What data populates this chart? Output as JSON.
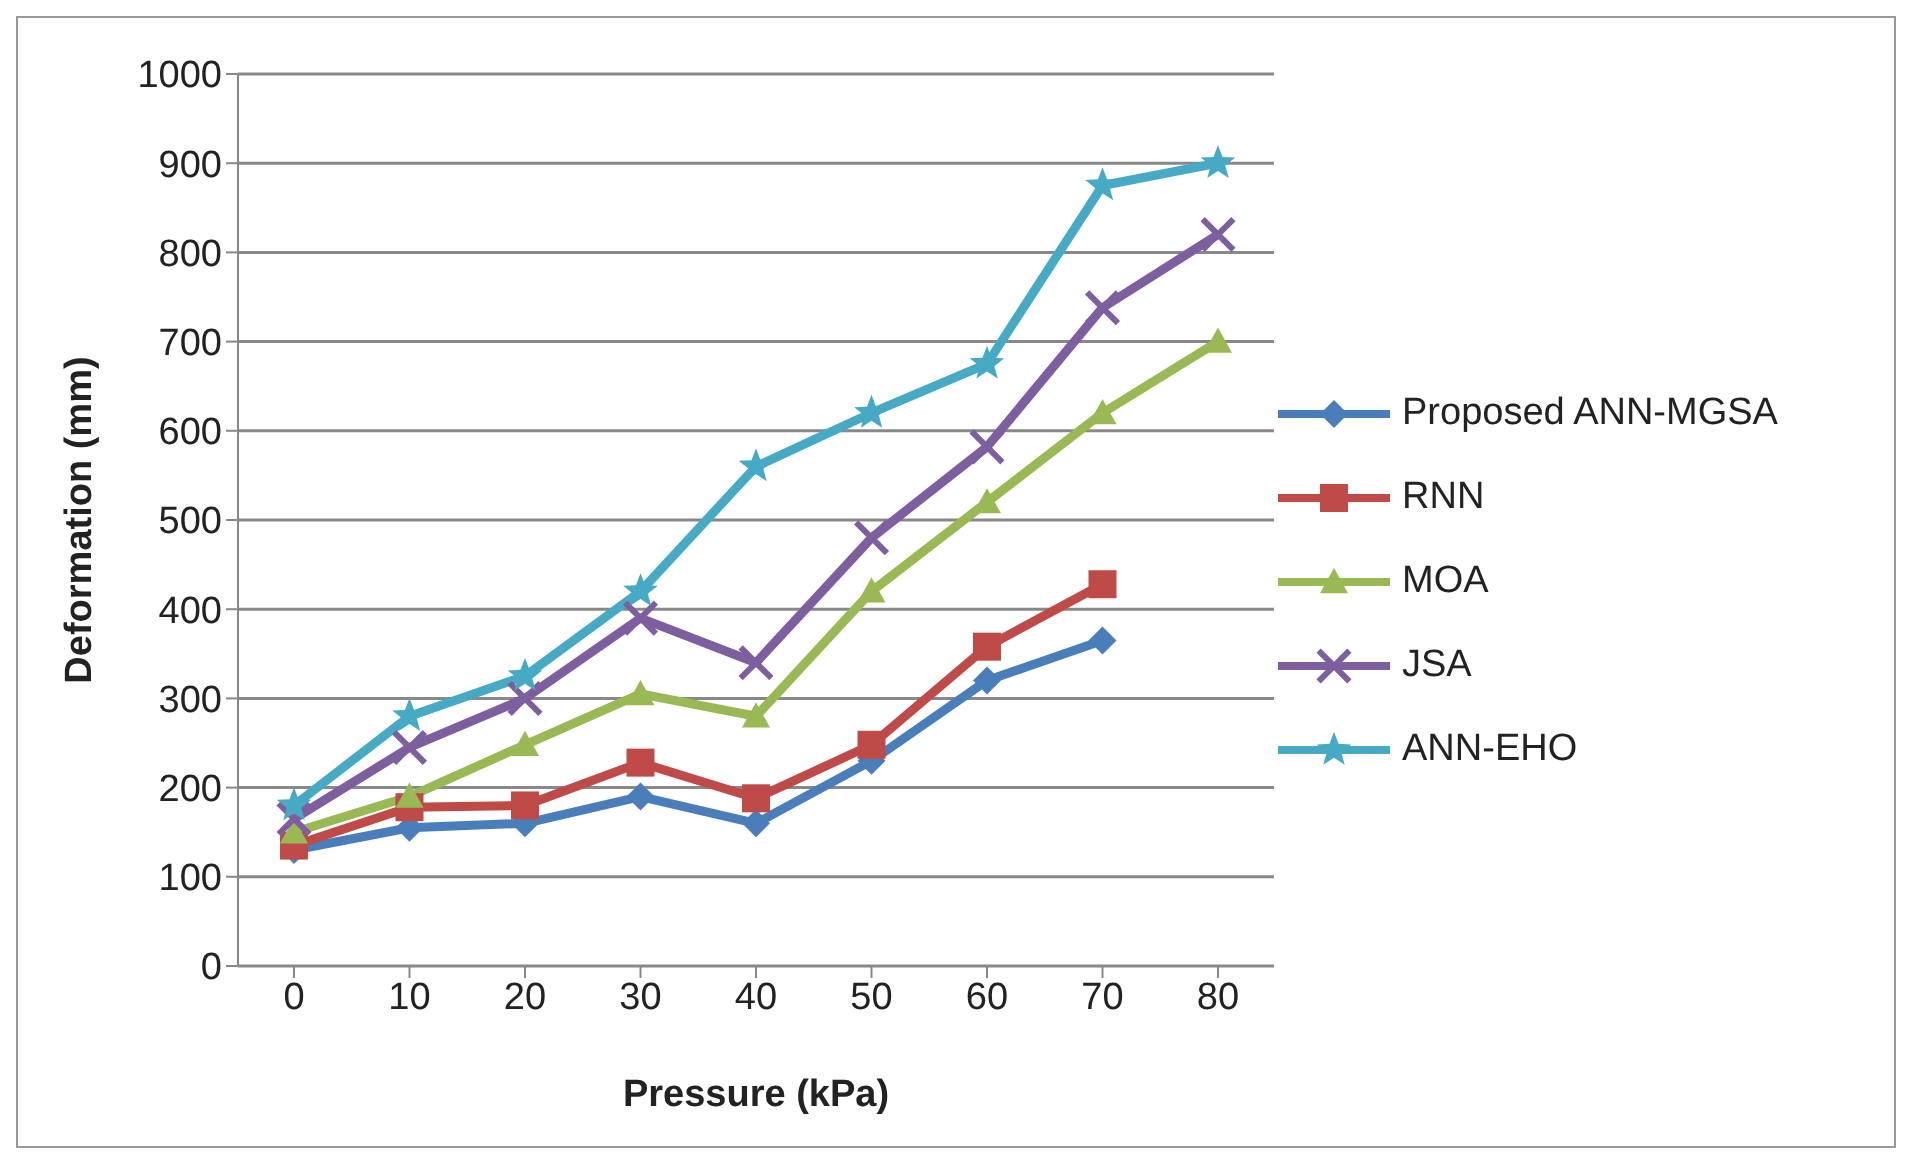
{
  "chart_data": {
    "type": "line",
    "xlabel": "Pressure (kPa)",
    "ylabel": "Deformation (mm)",
    "categories": [
      "0",
      "10",
      "20",
      "30",
      "40",
      "50",
      "60",
      "70",
      "80"
    ],
    "series": [
      {
        "name": "Proposed ANN-MGSA",
        "color": "#4a7ebb",
        "marker": "diamond",
        "values": [
          130,
          155,
          160,
          190,
          160,
          230,
          320,
          365,
          null
        ]
      },
      {
        "name": "RNN",
        "color": "#be4b48",
        "marker": "square",
        "values": [
          135,
          178,
          180,
          228,
          188,
          248,
          358,
          428,
          null
        ]
      },
      {
        "name": "MOA",
        "color": "#98b954",
        "marker": "triangle",
        "values": [
          150,
          190,
          248,
          305,
          280,
          420,
          520,
          620,
          700
        ]
      },
      {
        "name": "JSA",
        "color": "#7d5fa0",
        "marker": "cross",
        "values": [
          165,
          245,
          300,
          390,
          340,
          480,
          582,
          738,
          820
        ]
      },
      {
        "name": "ANN-EHO",
        "color": "#46aac5",
        "marker": "star",
        "values": [
          180,
          280,
          325,
          420,
          560,
          620,
          675,
          875,
          900
        ]
      }
    ],
    "ylim": [
      0,
      1000
    ],
    "yticks": [
      0,
      100,
      200,
      300,
      400,
      500,
      600,
      700,
      800,
      900,
      1000
    ],
    "grid": "y",
    "legend": "right",
    "line_style": "solid"
  }
}
